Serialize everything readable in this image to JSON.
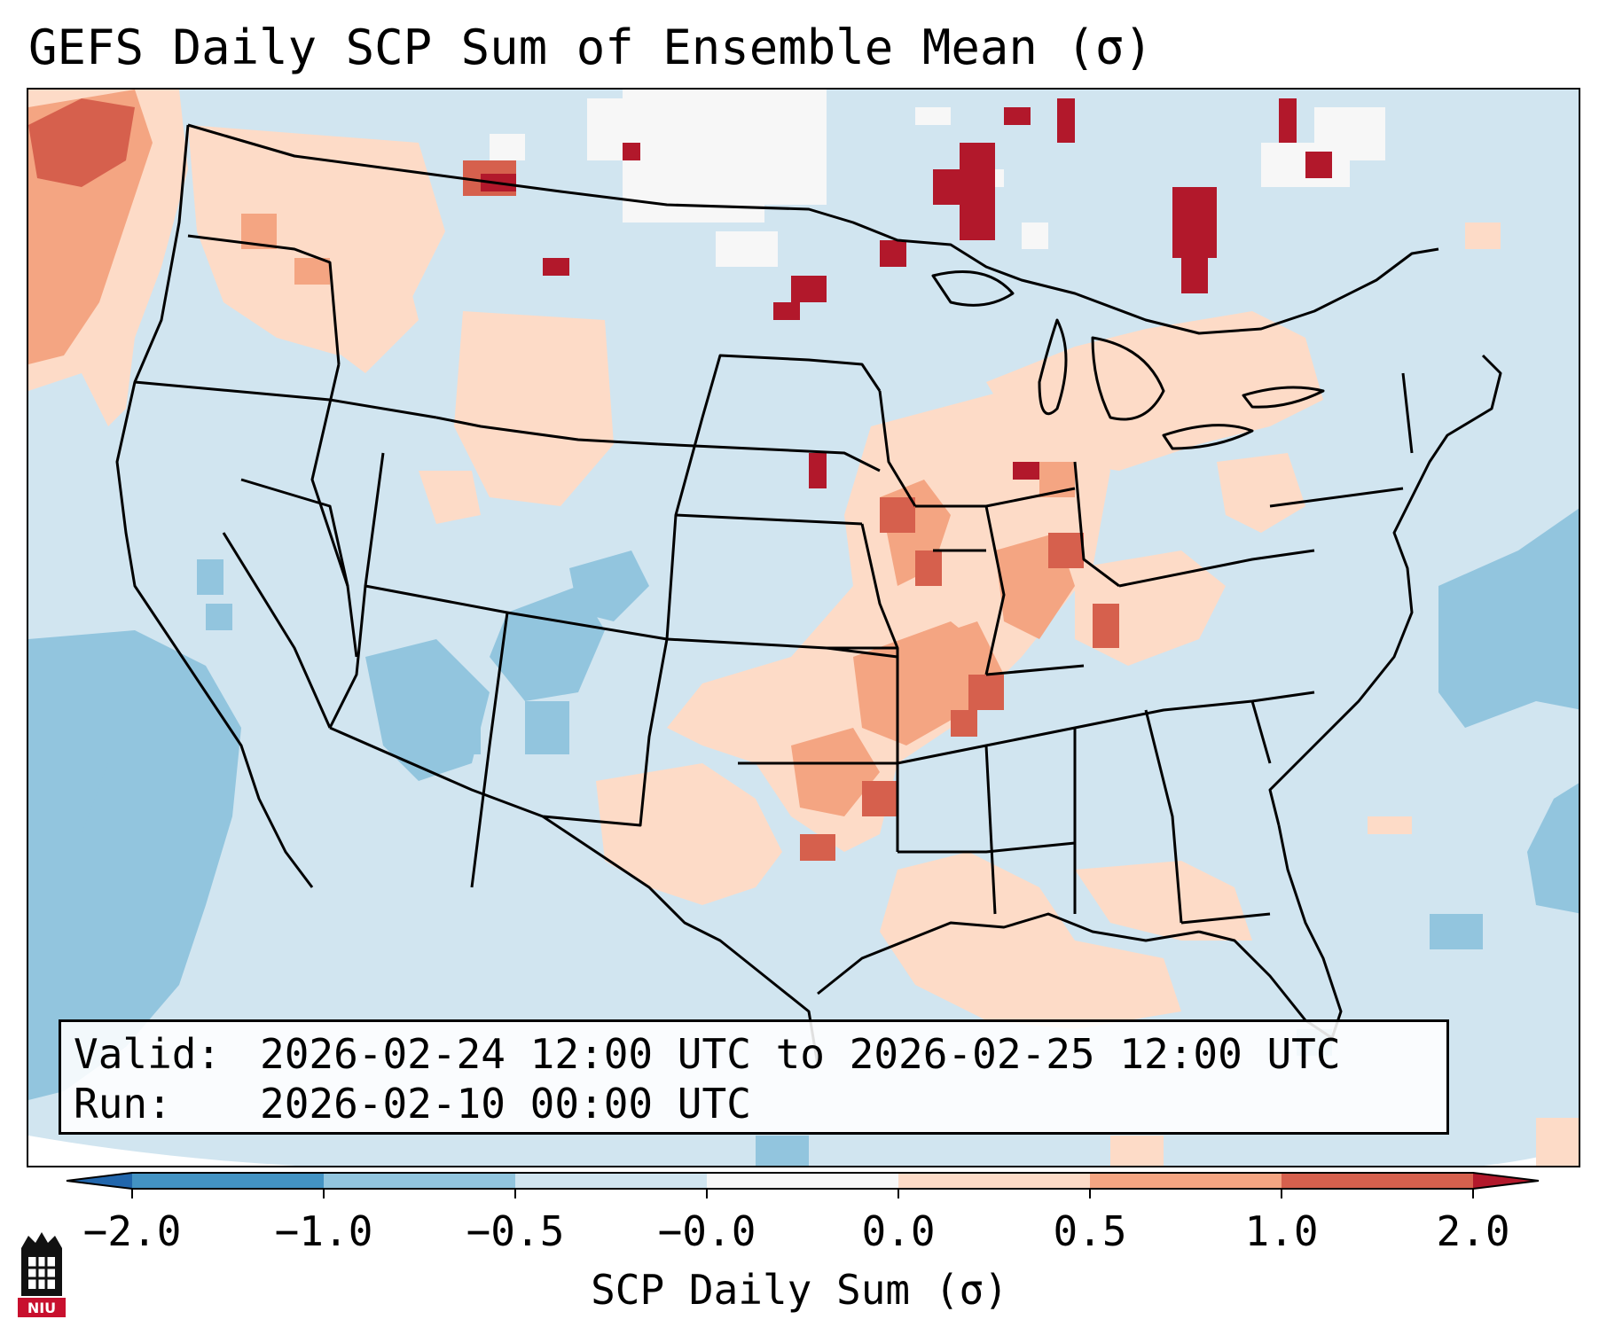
{
  "title": "GEFS Daily SCP Sum of Ensemble Mean (σ)",
  "valid": {
    "label": "Valid:",
    "value": "2026-02-24 12:00 UTC to 2026-02-25 12:00 UTC"
  },
  "run": {
    "label": "Run:",
    "value": "2026-02-10 00:00 UTC"
  },
  "colorbar": {
    "label": "SCP Daily Sum (σ)",
    "ticks": [
      "−2.0",
      "−1.0",
      "−0.5",
      "−0.0",
      "0.0",
      "0.5",
      "1.0",
      "2.0"
    ],
    "colors": {
      "under": "#2166ac",
      "b1": "#4393c3",
      "b2": "#92c5de",
      "b3": "#d1e5f0",
      "b4": "#f7f7f7",
      "b5": "#fddbc7",
      "b6": "#f4a582",
      "b7": "#d6604d",
      "over": "#b2182b"
    }
  },
  "logo": {
    "text": "NIU"
  },
  "map": {
    "background_color": "#d1e5f0",
    "regions": [
      "Pacific Northwest elevated SCP",
      "Mid-South corridor elevated SCP",
      "Gulf Coast elevated SCP",
      "Northern Plains and Canada near-zero",
      "Eastern Pacific and western Atlantic below normal"
    ]
  }
}
